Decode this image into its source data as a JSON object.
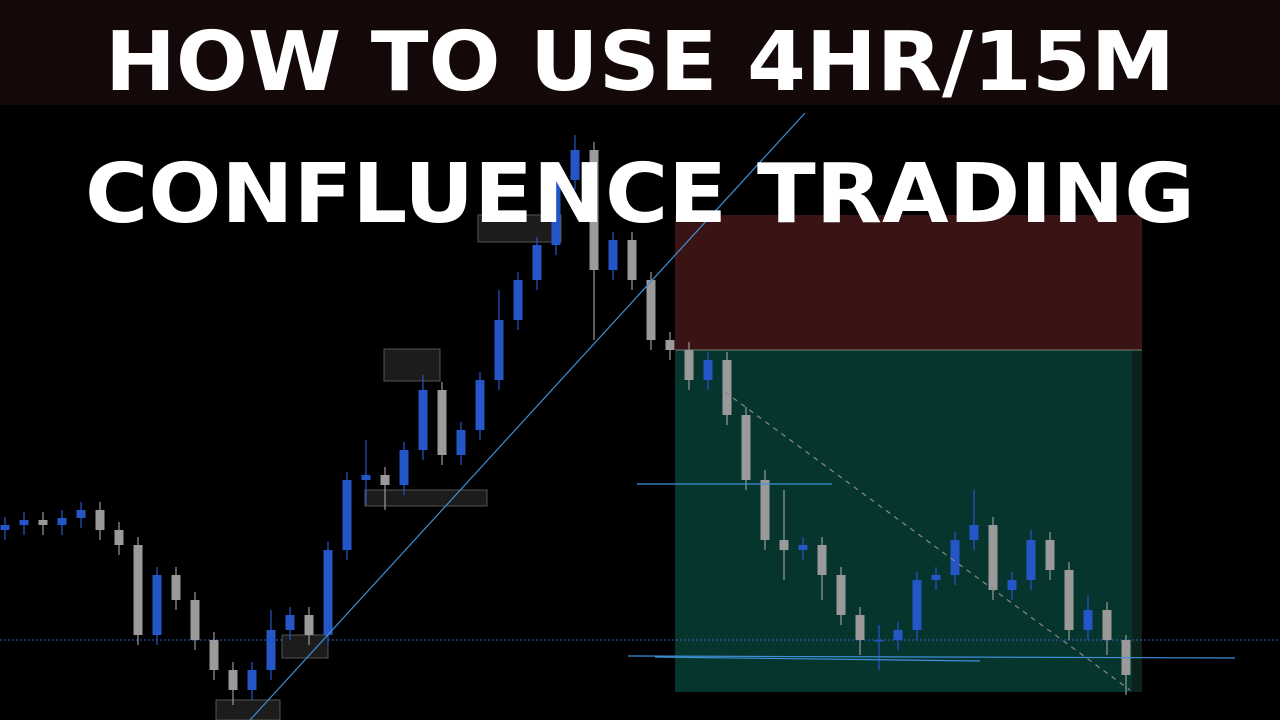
{
  "header": {
    "line1": "HOW TO USE 4HR/15M",
    "line2": "CONFLUENCE TRADING"
  },
  "chart_data": {
    "type": "candlestick",
    "open": [
      190,
      195,
      200,
      195,
      202,
      210,
      190,
      175,
      85,
      145,
      120,
      80,
      50,
      30,
      50,
      90,
      105,
      85,
      170,
      240,
      245,
      235,
      270,
      330,
      265,
      290,
      340,
      400,
      440,
      475,
      540,
      570,
      450,
      480,
      440,
      380,
      370,
      340,
      360,
      305,
      240,
      180,
      170,
      175,
      145,
      105,
      80,
      80,
      90,
      140,
      145,
      180,
      195,
      130,
      140,
      180,
      150,
      90,
      110,
      80
    ],
    "high": [
      203,
      208,
      208,
      210,
      218,
      218,
      198,
      183,
      153,
      153,
      128,
      88,
      58,
      58,
      110,
      113,
      113,
      178,
      248,
      280,
      253,
      278,
      345,
      338,
      298,
      348,
      430,
      448,
      483,
      548,
      585,
      578,
      488,
      488,
      448,
      388,
      378,
      368,
      368,
      313,
      250,
      230,
      183,
      183,
      153,
      113,
      95,
      98,
      148,
      153,
      188,
      230,
      203,
      148,
      190,
      188,
      158,
      125,
      118,
      85
    ],
    "low": [
      180,
      185,
      185,
      185,
      192,
      180,
      165,
      75,
      75,
      110,
      70,
      40,
      15,
      20,
      40,
      80,
      75,
      75,
      160,
      215,
      210,
      225,
      260,
      255,
      255,
      280,
      330,
      390,
      430,
      465,
      530,
      380,
      440,
      430,
      370,
      360,
      330,
      330,
      295,
      230,
      170,
      140,
      160,
      120,
      95,
      65,
      50,
      70,
      80,
      130,
      135,
      170,
      120,
      120,
      130,
      140,
      80,
      80,
      65,
      25
    ],
    "close": [
      195,
      200,
      195,
      202,
      210,
      190,
      175,
      85,
      145,
      120,
      80,
      50,
      30,
      50,
      90,
      105,
      85,
      170,
      240,
      245,
      235,
      270,
      330,
      265,
      290,
      340,
      400,
      440,
      475,
      540,
      570,
      450,
      480,
      440,
      380,
      370,
      340,
      360,
      305,
      240,
      180,
      170,
      175,
      145,
      105,
      80,
      80,
      90,
      140,
      145,
      180,
      195,
      130,
      140,
      180,
      150,
      90,
      110,
      80,
      45
    ],
    "ylim": [
      0,
      720
    ],
    "colors": {
      "up": "#2456c8",
      "down": "#9a9a9a"
    }
  }
}
